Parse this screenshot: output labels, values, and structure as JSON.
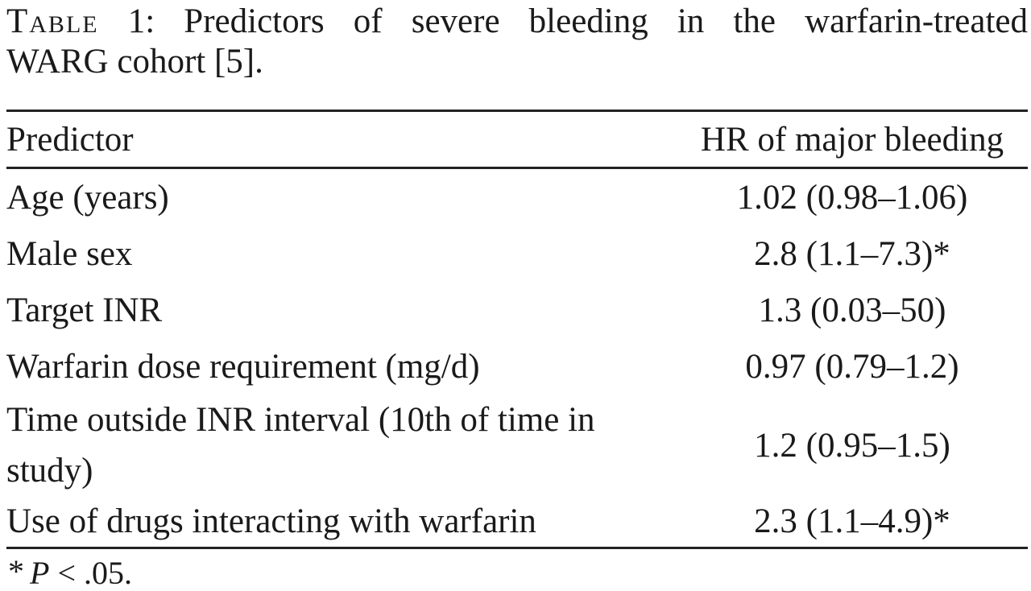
{
  "colors": {
    "text": "#1a1a1a",
    "rule": "#222222",
    "background": "#ffffff"
  },
  "caption": {
    "label": "Table",
    "line1_rest": "1: Predictors of severe bleeding in the warfarin-treated",
    "line2": "WARG cohort [5]."
  },
  "table": {
    "header": {
      "predictor": "Predictor",
      "hr": "HR of major bleeding"
    },
    "rows": [
      {
        "predictor": "Age (years)",
        "hr": "1.02 (0.98–1.06)"
      },
      {
        "predictor": "Male sex",
        "hr": "2.8 (1.1–7.3)*"
      },
      {
        "predictor": "Target INR",
        "hr": "1.3 (0.03–50)"
      },
      {
        "predictor": "Warfarin dose requirement (mg/d)",
        "hr": "0.97 (0.79–1.2)"
      },
      {
        "predictor": "Time outside INR interval (10th of time in study)",
        "hr": "1.2 (0.95–1.5)"
      },
      {
        "predictor": "Use of drugs interacting with warfarin",
        "hr": "2.3 (1.1–4.9)*"
      }
    ]
  },
  "footnote": {
    "marker": "*",
    "variable": "P",
    "rest": "< .05."
  }
}
